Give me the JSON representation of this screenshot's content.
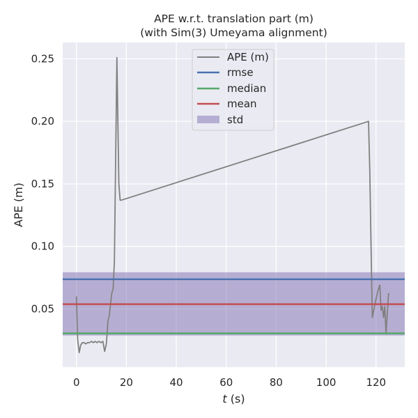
{
  "chart_data": {
    "type": "line",
    "title_lines": [
      "APE w.r.t. translation part (m)",
      "(with Sim(3) Umeyama alignment)"
    ],
    "xlabel": {
      "italic": "t",
      "rest": " (s)"
    },
    "ylabel": "APE (m)",
    "xlim": [
      -5.5,
      131.5
    ],
    "ylim": [
      0.0034,
      0.2631
    ],
    "xticks": [
      0,
      20,
      40,
      60,
      80,
      100,
      120
    ],
    "yticks": [
      0.05,
      0.1,
      0.15,
      0.2,
      0.25
    ],
    "ytick_labels": [
      "0.05",
      "0.10",
      "0.15",
      "0.20",
      "0.25"
    ],
    "grid": true,
    "legend_position": "upper-center",
    "colors": {
      "background": "#EAEAF2",
      "grid": "#FFFFFF",
      "ape": "#808080",
      "rmse": "#4C72B0",
      "median": "#55A868",
      "mean": "#C44E52",
      "std_fill": "#8172B2"
    },
    "series": [
      {
        "name": "APE (m)",
        "x": [
          0.0,
          0.5,
          1.1,
          1.7,
          2.4,
          3.0,
          3.7,
          4.5,
          5.3,
          6.0,
          6.8,
          7.5,
          8.2,
          9.0,
          9.8,
          10.6,
          11.3,
          12.0,
          12.6,
          13.2,
          13.7,
          14.2,
          14.7,
          15.2,
          15.7,
          16.2,
          16.6,
          17.0,
          17.5,
          18.0,
          117.0,
          117.5,
          118.0,
          118.5,
          119.2,
          120.0,
          120.8,
          121.5,
          122.0,
          122.5,
          123.0,
          123.5,
          124.0,
          124.5,
          125.0,
          125.4
        ],
        "y": [
          0.06,
          0.025,
          0.015,
          0.021,
          0.023,
          0.023,
          0.022,
          0.023,
          0.023,
          0.024,
          0.023,
          0.024,
          0.023,
          0.024,
          0.023,
          0.024,
          0.016,
          0.022,
          0.04,
          0.045,
          0.055,
          0.063,
          0.066,
          0.088,
          0.17,
          0.251,
          0.2,
          0.15,
          0.137,
          0.137,
          0.2,
          0.16,
          0.1,
          0.043,
          0.05,
          0.058,
          0.065,
          0.069,
          0.049,
          0.052,
          0.043,
          0.052,
          0.03,
          0.046,
          0.062,
          0.062
        ]
      }
    ],
    "hlines": [
      {
        "name": "rmse",
        "y": 0.0737
      },
      {
        "name": "median",
        "y": 0.0304
      },
      {
        "name": "mean",
        "y": 0.0538
      }
    ],
    "band": {
      "name": "std",
      "y_low": 0.0287,
      "y_high": 0.0793
    },
    "legend": [
      "APE (m)",
      "rmse",
      "median",
      "mean",
      "std"
    ]
  }
}
